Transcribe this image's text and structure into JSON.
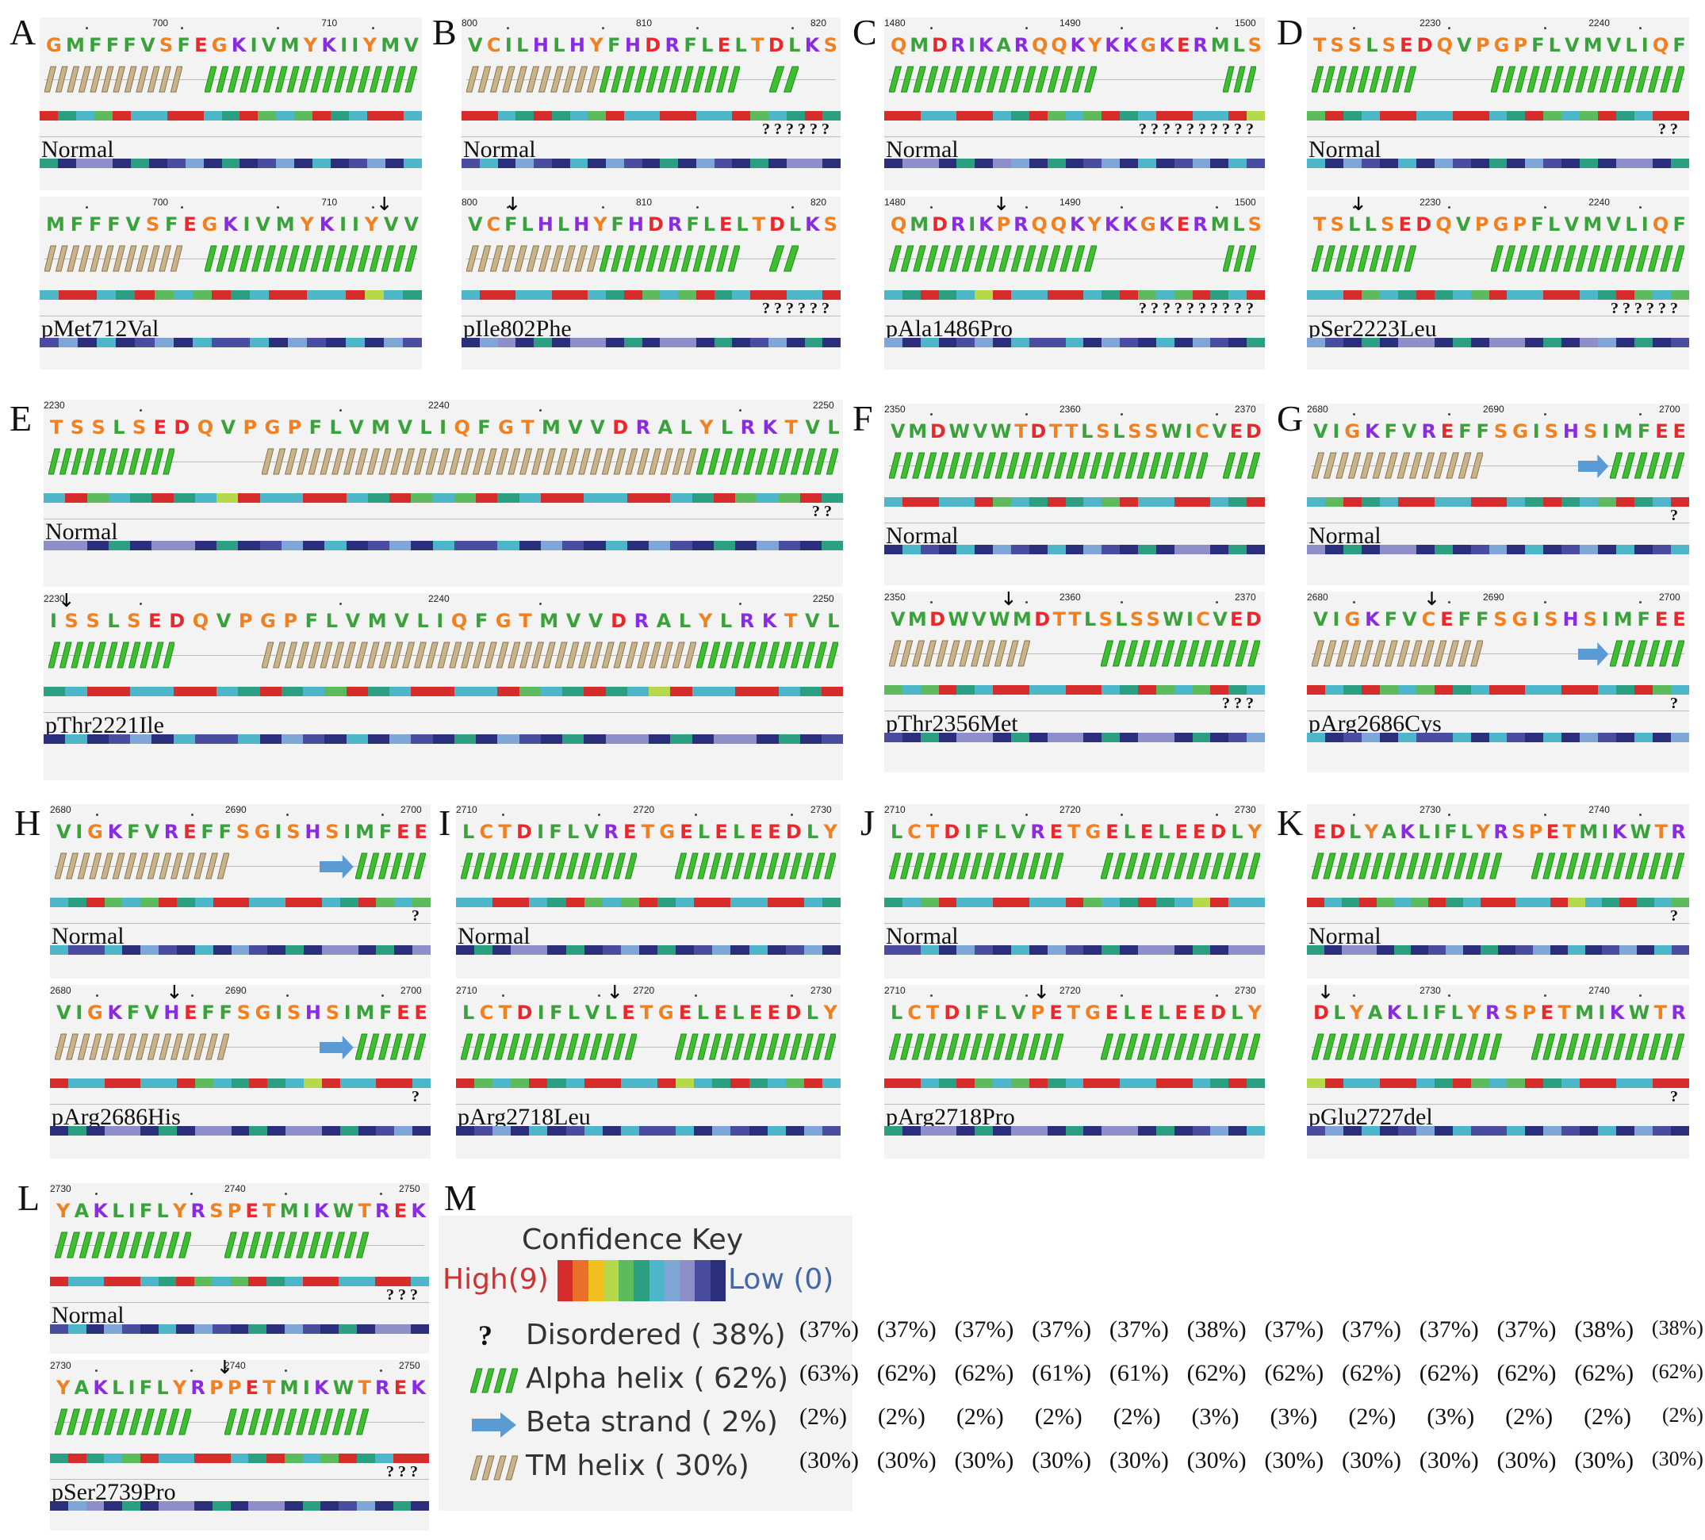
{
  "colors": {
    "helix_alpha": "#3fbf2f",
    "helix_tm": "#c9b48a",
    "beta": "#5b9bd5",
    "confidence_scale": [
      "#d62c2c",
      "#e8702a",
      "#f2c01e",
      "#b6d94c",
      "#5dbb5d",
      "#2c9e82",
      "#4eb6c9",
      "#7ea6d6",
      "#8e8fc8",
      "#4a4ca0",
      "#2b2e7a"
    ],
    "aa": {
      "hydrophobic": "#3aa23a",
      "acid": "#e8292b",
      "basic": "#8a2be2",
      "polar": "#f08020"
    }
  },
  "panels": [
    {
      "id": "A",
      "top": {
        "ticks": [
          "700",
          "710"
        ],
        "seq": "GMFFFVSFEGKIVMYKIIYMV",
        "label": "Normal",
        "dis": ""
      },
      "bot": {
        "ticks": [
          "700",
          "710"
        ],
        "seq": "MFFFVSFEGKIVMYKIIYVV",
        "label": "pMet712Val",
        "dis": ""
      }
    },
    {
      "id": "B",
      "top": {
        "ticks": [
          "800",
          "810",
          "820"
        ],
        "seq": "VCILHLHYFHDRFLELTDLKS",
        "label": "Normal",
        "dis": "? ? ? ? ? ?"
      },
      "bot": {
        "ticks": [
          "800",
          "810",
          "820"
        ],
        "seq": "VCFLHLHYFHDRFLELTDLKS",
        "label": "pIle802Phe",
        "dis": "? ? ? ? ? ?"
      }
    },
    {
      "id": "C",
      "top": {
        "ticks": [
          "1480",
          "1490",
          "1500"
        ],
        "seq": "QMDRIKARQQKYKKGKERMLS",
        "label": "Normal",
        "dis": "? ? ? ? ? ? ? ? ? ?"
      },
      "bot": {
        "ticks": [
          "1480",
          "1490",
          "1500"
        ],
        "seq": "QMDRIKPRQQKYKKGKERMLS",
        "label": "pAla1486Pro",
        "dis": "? ? ? ? ? ? ? ? ? ?"
      }
    },
    {
      "id": "D",
      "top": {
        "ticks": [
          "2230",
          "2240"
        ],
        "seq": "TSSLSEDQVPGPFLVMVLIQF",
        "label": "Normal",
        "dis": "? ?"
      },
      "bot": {
        "ticks": [
          "2230",
          "2240"
        ],
        "seq": "TSLLSEDQVPGPFLVMVLIQF",
        "label": "pSer2223Leu",
        "dis": "? ? ? ? ? ?"
      }
    },
    {
      "id": "E",
      "top": {
        "ticks": [
          "2230",
          "2240",
          "2250"
        ],
        "seq": "TSSLSEDQVPGPFLVMVLIQFGTMVVDRALYLRKTVL",
        "label": "Normal",
        "dis": "? ?"
      },
      "bot": {
        "ticks": [
          "2230",
          "2240",
          "2250"
        ],
        "seq": "ISSLSEDQVPGPFLVMVLIQFGTMVVDRALYLRKTVL",
        "label": "pThr2221Ile",
        "dis": ""
      }
    },
    {
      "id": "F",
      "top": {
        "ticks": [
          "2350",
          "2360",
          "2370"
        ],
        "seq": "VMDWVWTDTTLSLSSWICVED",
        "label": "Normal",
        "dis": ""
      },
      "bot": {
        "ticks": [
          "2350",
          "2360",
          "2370"
        ],
        "seq": "VMDWVWMDTTLSLSSWICVED",
        "label": "pThr2356Met",
        "dis": "? ? ?"
      }
    },
    {
      "id": "G",
      "top": {
        "ticks": [
          "2680",
          "2690",
          "2700"
        ],
        "seq": "VIGKFVREFFSGISHSIMFEE",
        "label": "Normal",
        "dis": "?"
      },
      "bot": {
        "ticks": [
          "2680",
          "2690",
          "2700"
        ],
        "seq": "VIGKFVCEFFSGISHSIMFEE",
        "label": "pArg2686Cys",
        "dis": "?"
      }
    },
    {
      "id": "H",
      "top": {
        "ticks": [
          "2680",
          "2690",
          "2700"
        ],
        "seq": "VIGKFVREFFSGISHSIMFEE",
        "label": "Normal",
        "dis": "?"
      },
      "bot": {
        "ticks": [
          "2680",
          "2690",
          "2700"
        ],
        "seq": "VIGKFVHEFFSGISHSIMFEE",
        "label": "pArg2686His",
        "dis": "?"
      }
    },
    {
      "id": "I",
      "top": {
        "ticks": [
          "2710",
          "2720",
          "2730"
        ],
        "seq": "LCTDIFLVRETGELELEEDLY",
        "label": "Normal",
        "dis": ""
      },
      "bot": {
        "ticks": [
          "2710",
          "2720",
          "2730"
        ],
        "seq": "LCTDIFLVLETGELELEEDLY",
        "label": "pArg2718Leu",
        "dis": ""
      }
    },
    {
      "id": "J",
      "top": {
        "ticks": [
          "2710",
          "2720",
          "2730"
        ],
        "seq": "LCTDIFLVRETGELELEEDLY",
        "label": "Normal",
        "dis": ""
      },
      "bot": {
        "ticks": [
          "2710",
          "2720",
          "2730"
        ],
        "seq": "LCTDIFLVPETGELELEEDLY",
        "label": "pArg2718Pro",
        "dis": ""
      }
    },
    {
      "id": "K",
      "top": {
        "ticks": [
          "2730",
          "2740"
        ],
        "seq": "EDLYAKLIFLYRSPETMIKWTR",
        "label": "Normal",
        "dis": "?"
      },
      "bot": {
        "ticks": [
          "2730",
          "2740"
        ],
        "seq": "DLYAKLIFLYRSPETMIKWTR",
        "label": "pGlu2727del",
        "dis": "?"
      }
    },
    {
      "id": "L",
      "top": {
        "ticks": [
          "2730",
          "2740",
          "2750"
        ],
        "seq": "YAKLIFLYRSPETMIKWTREK",
        "label": "Normal",
        "dis": "? ? ?"
      },
      "bot": {
        "ticks": [
          "2730",
          "2740",
          "2750"
        ],
        "seq": "YAKLIFLYRPPETMIKWTREK",
        "label": "pSer2739Pro",
        "dis": "? ? ?"
      }
    }
  ],
  "key": {
    "panel_label": "M",
    "title": "Confidence Key",
    "high": "High(9)",
    "low": "Low (0)",
    "rows": [
      {
        "icon": "?",
        "text": "Disordered ( 38%)",
        "pcts": [
          "(37%)",
          "(37%)",
          "(37%)",
          "(37%)",
          "(37%)",
          "(38%)",
          "(37%)",
          "(37%)",
          "(37%)",
          "(37%)",
          "(38%)",
          "(38%)"
        ]
      },
      {
        "icon": "alpha",
        "text": "Alpha helix ( 62%)",
        "pcts": [
          "(63%)",
          "(62%)",
          "(62%)",
          "(61%)",
          "(61%)",
          "(62%)",
          "(62%)",
          "(62%)",
          "(62%)",
          "(62%)",
          "(62%)",
          "(62%)"
        ]
      },
      {
        "icon": "beta",
        "text": "Beta strand ( 2%)",
        "pcts": [
          "(2%)",
          "(2%)",
          "(2%)",
          "(2%)",
          "(2%)",
          "(3%)",
          "(3%)",
          "(2%)",
          "(3%)",
          "(2%)",
          "(2%)",
          "(2%)"
        ]
      },
      {
        "icon": "tm",
        "text": "TM helix ( 30%)",
        "pcts": [
          "(30%)",
          "(30%)",
          "(30%)",
          "(30%)",
          "(30%)",
          "(30%)",
          "(30%)",
          "(30%)",
          "(30%)",
          "(30%)",
          "(30%)",
          "(30%)"
        ]
      }
    ]
  }
}
